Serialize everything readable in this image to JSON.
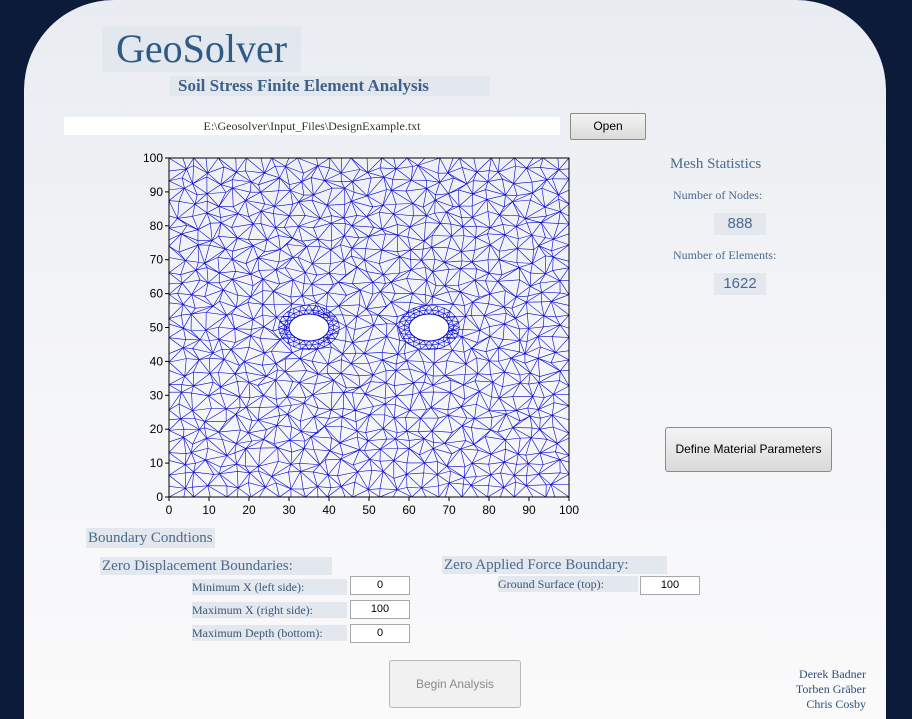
{
  "app": {
    "title": "GeoSolver",
    "subtitle": "Soil Stress Finite Element Analysis"
  },
  "file": {
    "path": "E:\\Geosolver\\Input_Files\\DesignExample.txt",
    "open_label": "Open"
  },
  "mesh_stats": {
    "heading": "Mesh Statistics",
    "nodes_label": "Number of Nodes:",
    "nodes_value": "888",
    "elements_label": "Number of Elements:",
    "elements_value": "1622"
  },
  "material_button": "Define Material Parameters",
  "boundary": {
    "heading": "Boundary Condtions",
    "zero_disp_heading": "Zero Displacement Boundaries:",
    "min_x_label": "Minimum X (left side):",
    "min_x_value": "0",
    "max_x_label": "Maximum X (right side):",
    "max_x_value": "100",
    "max_depth_label": "Maximum Depth (bottom):",
    "max_depth_value": "0",
    "zero_force_heading": "Zero Applied Force Boundary:",
    "ground_label": "Ground Surface (top):",
    "ground_value": "100"
  },
  "begin_label": "Begin Analysis",
  "authors": [
    "Derek Badner",
    "Torben Gräber",
    "Chris Cosby"
  ],
  "colors": {
    "mesh": "#0000cc",
    "background": "#0d1b3a",
    "title": "#2e5b86"
  },
  "chart_data": {
    "type": "scatter",
    "title": "",
    "xlabel": "",
    "ylabel": "",
    "xlim": [
      0,
      100
    ],
    "ylim": [
      0,
      100
    ],
    "x_ticks": [
      "0",
      "10",
      "20",
      "30",
      "40",
      "50",
      "60",
      "70",
      "80",
      "90",
      "100"
    ],
    "y_ticks": [
      "0",
      "10",
      "20",
      "30",
      "40",
      "50",
      "60",
      "70",
      "80",
      "90",
      "100"
    ],
    "holes": [
      {
        "center": [
          35,
          50
        ],
        "radius_x": 5,
        "radius_y": 4
      },
      {
        "center": [
          65,
          50
        ],
        "radius_x": 5,
        "radius_y": 4
      }
    ],
    "node_count": 888,
    "element_count": 1622
  }
}
